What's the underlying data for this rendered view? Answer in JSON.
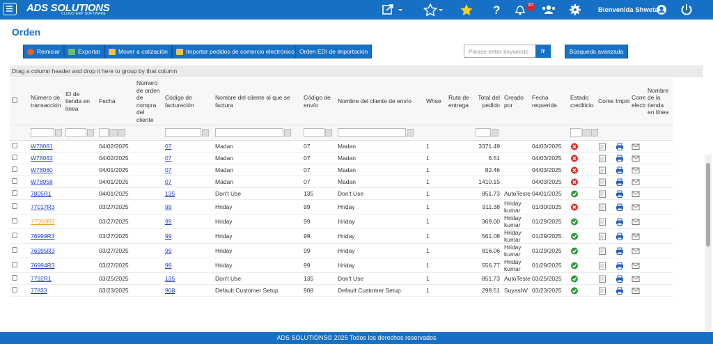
{
  "header": {
    "logo": "ADS SOLUTIONS",
    "logo_tagline": "CLOUD ERP SOFTWARE",
    "notifications": "20",
    "greeting": "Bienvenida Shweta"
  },
  "page_title": "Orden",
  "toolbar": {
    "buttons": [
      "Reiniciar",
      "Exportar",
      "Mover a cotización",
      "Importar pedidos de comercio electrónico",
      "Orden EDI de importación"
    ],
    "search_placeholder": "Please enter keywords",
    "search_button": "Ir",
    "advanced_search": "Búsqueda avanzada"
  },
  "group_hint": "Drag a column header and drop it here to group by that column",
  "table": {
    "link_color": "#1f3fcf",
    "columns": [
      "Número de transacción",
      "ID de tienda en línea",
      "Fecha",
      "Número de orden de compra del cliente",
      "Código de facturación",
      "Nombre del cliente al que se factura",
      "Código de envío",
      "Nombre del cliente de envío",
      "Whse",
      "Ruta de entrega",
      "Total del pedido",
      "Creado por",
      "Fecha requerida",
      "Estado crediticio",
      "Comentario",
      "Imprimir",
      "Correo electrónico",
      "Nombre de la tienda en línea"
    ],
    "rows": [
      {
        "number": "W78061",
        "date": "04/02/2025",
        "billing_code": "07",
        "bill_to": "Madan",
        "ship_code": "07",
        "ship_to": "Madan",
        "whse": "1",
        "total": "3371.49",
        "created_by": null,
        "required_date": "04/03/2025",
        "credit_color": "#d93025"
      },
      {
        "number": "W78063",
        "date": "04/02/2025",
        "billing_code": "07",
        "bill_to": "Madan",
        "ship_code": "07",
        "ship_to": "Madan",
        "whse": "1",
        "total": "6.51",
        "created_by": null,
        "required_date": "04/03/2025",
        "credit_color": "#d93025"
      },
      {
        "number": "W78060",
        "date": "04/01/2025",
        "billing_code": "07",
        "bill_to": "Madan",
        "ship_code": "07",
        "ship_to": "Madan",
        "whse": "1",
        "total": "82.46",
        "created_by": null,
        "required_date": "04/03/2025",
        "credit_color": "#d93025"
      },
      {
        "number": "W78058",
        "date": "04/01/2025",
        "billing_code": "07",
        "bill_to": "Madan",
        "ship_code": "07",
        "ship_to": "Madan",
        "whse": "1",
        "total": "1410.15",
        "created_by": null,
        "required_date": "04/03/2025",
        "credit_color": "#d93025"
      },
      {
        "number": "7805R1",
        "date": "04/01/2025",
        "billing_code": "135",
        "bill_to": "Don't Use",
        "ship_code": "135",
        "ship_to": "Don't Use",
        "whse": "1",
        "total": "851.73",
        "created_by": "AutoTeste",
        "required_date": "04/01/2025",
        "credit_color": "#2e9b3a"
      },
      {
        "number": "77017R3",
        "date": "03/27/2025",
        "billing_code": "99",
        "bill_to": "Hriday",
        "ship_code": "99",
        "ship_to": "Hriday",
        "whse": "1",
        "total": "911.38",
        "created_by": "Hriday kumar",
        "required_date": "01/30/2025",
        "credit_color": "#d93025"
      },
      {
        "number": "77000R3",
        "number_color": "#f0a030",
        "date": "03/27/2025",
        "billing_code": "99",
        "bill_to": "Hriday",
        "ship_code": "99",
        "ship_to": "Hriday",
        "whse": "1",
        "total": "369.00",
        "created_by": "Hriday kumar",
        "required_date": "01/29/2025",
        "credit_color": "#2e9b3a"
      },
      {
        "number": "76999R3",
        "date": "03/27/2025",
        "billing_code": "99",
        "bill_to": "Hriday",
        "ship_code": "99",
        "ship_to": "Hriday",
        "whse": "1",
        "total": "561.08",
        "created_by": "Hriday kumar",
        "required_date": "01/29/2025",
        "credit_color": "#2e9b3a"
      },
      {
        "number": "76995R3",
        "date": "03/27/2025",
        "billing_code": "99",
        "bill_to": "Hriday",
        "ship_code": "99",
        "ship_to": "Hriday",
        "whse": "1",
        "total": "816.06",
        "created_by": "Hriday kumar",
        "required_date": "01/29/2025",
        "credit_color": "#2e9b3a"
      },
      {
        "number": "76994R3",
        "date": "03/27/2025",
        "billing_code": "99",
        "bill_to": "Hriday",
        "ship_code": "99",
        "ship_to": "Hriday",
        "whse": "1",
        "total": "556.77",
        "created_by": "Hriday kumar",
        "required_date": "01/29/2025",
        "credit_color": "#2e9b3a"
      },
      {
        "number": "7792R1",
        "date": "03/25/2025",
        "billing_code": "135",
        "bill_to": "Don't Use",
        "ship_code": "135",
        "ship_to": "Don't Use",
        "whse": "1",
        "total": "851.73",
        "created_by": "AutoTeste",
        "required_date": "03/25/2025",
        "credit_color": "#2e9b3a"
      },
      {
        "number": "77833",
        "date": "03/23/2025",
        "billing_code": "908",
        "bill_to": "Default Customer Setup",
        "ship_code": "908",
        "ship_to": "Default Customer Setup",
        "whse": "1",
        "total": "298.51",
        "created_by": "SuyashV",
        "required_date": "03/23/2025",
        "credit_color": "#2e9b3a"
      }
    ]
  },
  "footer": "ADS SOLUTIONS© 2025 Todos los derechos reservados"
}
